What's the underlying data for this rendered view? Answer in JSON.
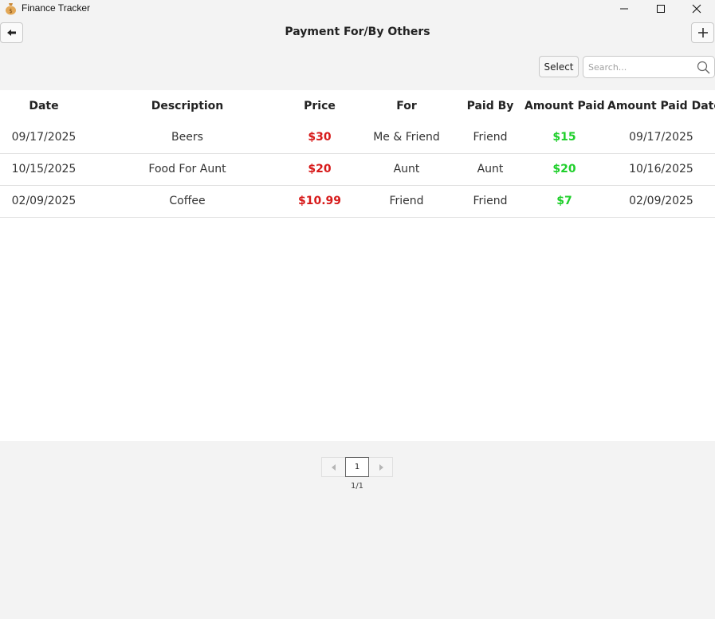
{
  "window": {
    "title": "Finance Tracker",
    "icon": "money-bag-icon"
  },
  "header": {
    "title": "Payment For/By Others",
    "back_icon": "arrow-left-icon",
    "add_icon": "plus-icon"
  },
  "toolbar": {
    "select_label": "Select",
    "search_placeholder": "Search...",
    "search_icon": "search-icon"
  },
  "table": {
    "columns": [
      "Date",
      "Description",
      "Price",
      "For",
      "Paid By",
      "Amount Paid",
      "Amount Paid Date"
    ],
    "rows": [
      {
        "date": "09/17/2025",
        "description": "Beers",
        "price": "$30",
        "for": "Me & Friend",
        "paid_by": "Friend",
        "amount_paid": "$15",
        "amount_paid_date": "09/17/2025"
      },
      {
        "date": "10/15/2025",
        "description": "Food For Aunt",
        "price": "$20",
        "for": "Aunt",
        "paid_by": "Aunt",
        "amount_paid": "$20",
        "amount_paid_date": "10/16/2025"
      },
      {
        "date": "02/09/2025",
        "description": "Coffee",
        "price": "$10.99",
        "for": "Friend",
        "paid_by": "Friend",
        "amount_paid": "$7",
        "amount_paid_date": "02/09/2025"
      }
    ]
  },
  "pagination": {
    "current_page": "1",
    "page_count": "1/1"
  },
  "colors": {
    "price": "#d71a1a",
    "amount_paid": "#1fcf2b",
    "background": "#f3f3f3"
  }
}
